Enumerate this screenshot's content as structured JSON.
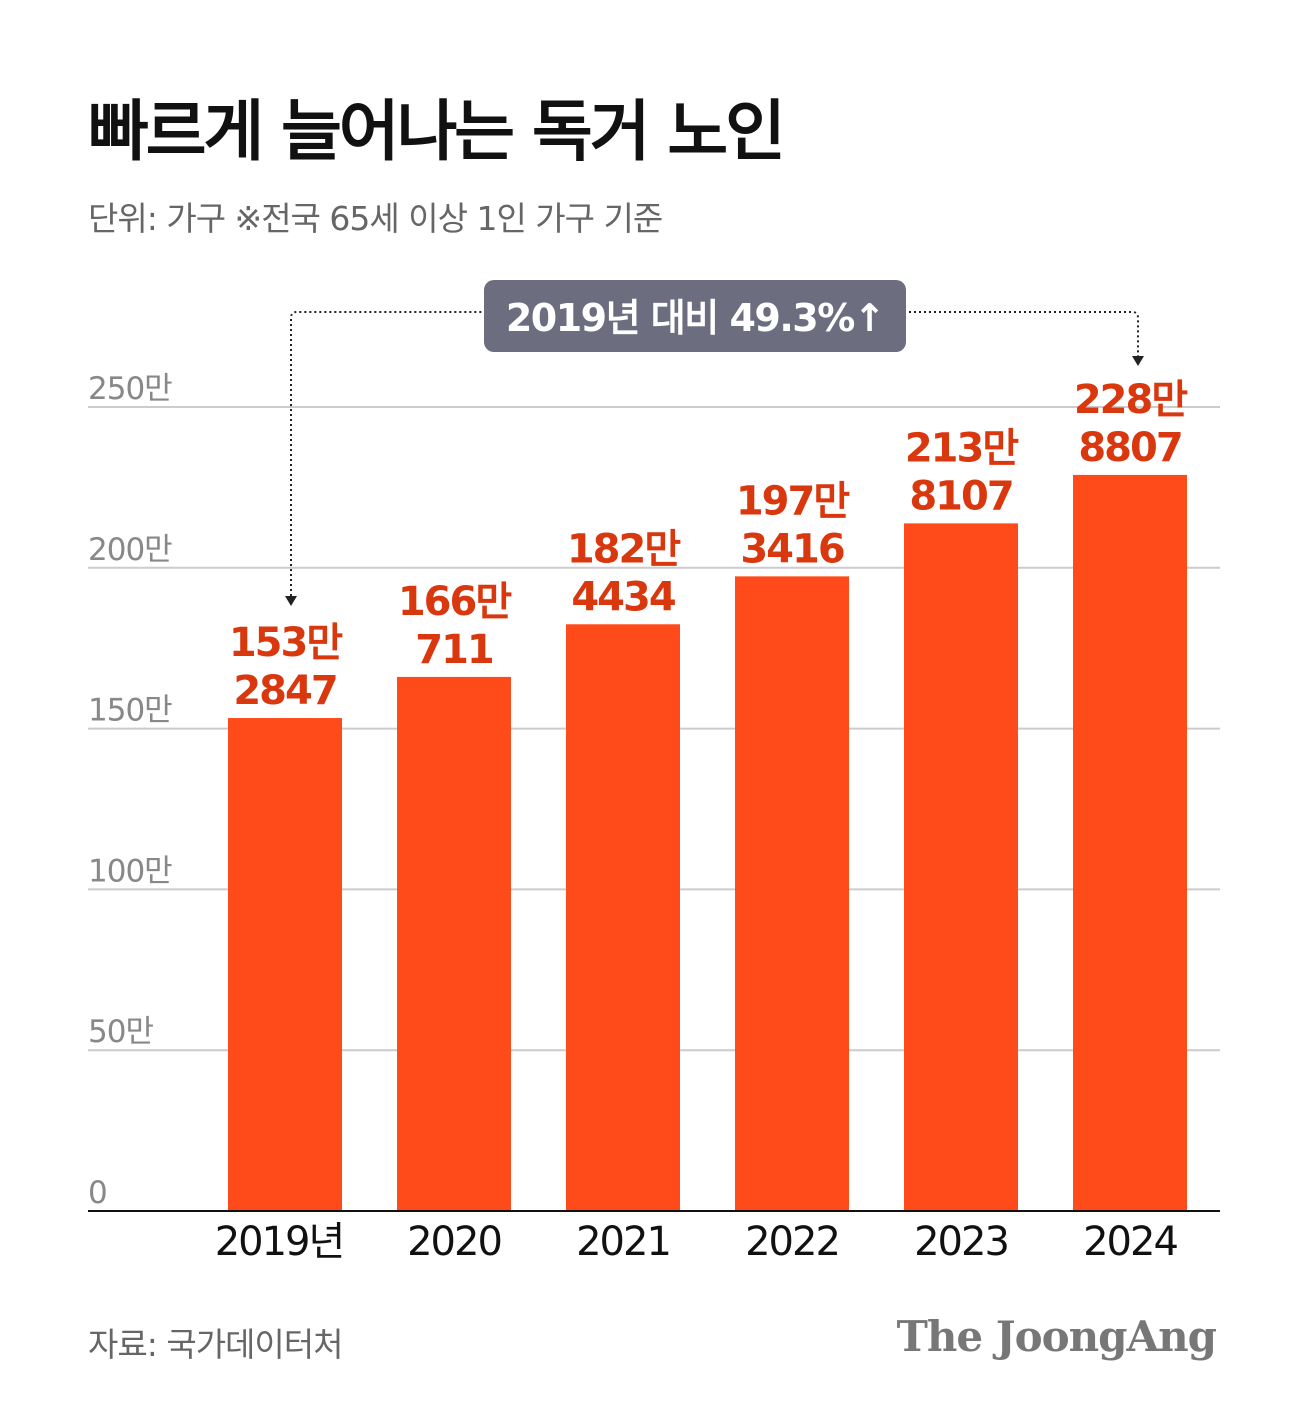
{
  "title": "빠르게 늘어나는 독거 노인",
  "subtitle": "단위: 가구 ※전국 65세 이상 1인 가구 기준",
  "source": "자료: 국가데이터처",
  "logo": "The JoongAng",
  "colors": {
    "bar": "#FF4B19",
    "label": "#D9380E",
    "annotation_bg": "#6C6E80",
    "grid": "#CCCCCC"
  },
  "chart_data": {
    "type": "bar",
    "categories": [
      "2019년",
      "2020",
      "2021",
      "2022",
      "2023",
      "2024"
    ],
    "values": [
      1532847,
      1660711,
      1824434,
      1973416,
      2138107,
      2288807
    ],
    "data_labels": [
      [
        "153만",
        "2847"
      ],
      [
        "166만",
        "711"
      ],
      [
        "182만",
        "4434"
      ],
      [
        "197만",
        "3416"
      ],
      [
        "213만",
        "8107"
      ],
      [
        "228만",
        "8807"
      ]
    ],
    "ylim": [
      0,
      2500000
    ],
    "yticks": [
      0,
      500000,
      1000000,
      1500000,
      2000000,
      2500000
    ],
    "ytick_labels": [
      "0",
      "50만",
      "100만",
      "150만",
      "200만",
      "250만"
    ],
    "grid": true,
    "annotation": "2019년 대비 49.3%↑"
  }
}
